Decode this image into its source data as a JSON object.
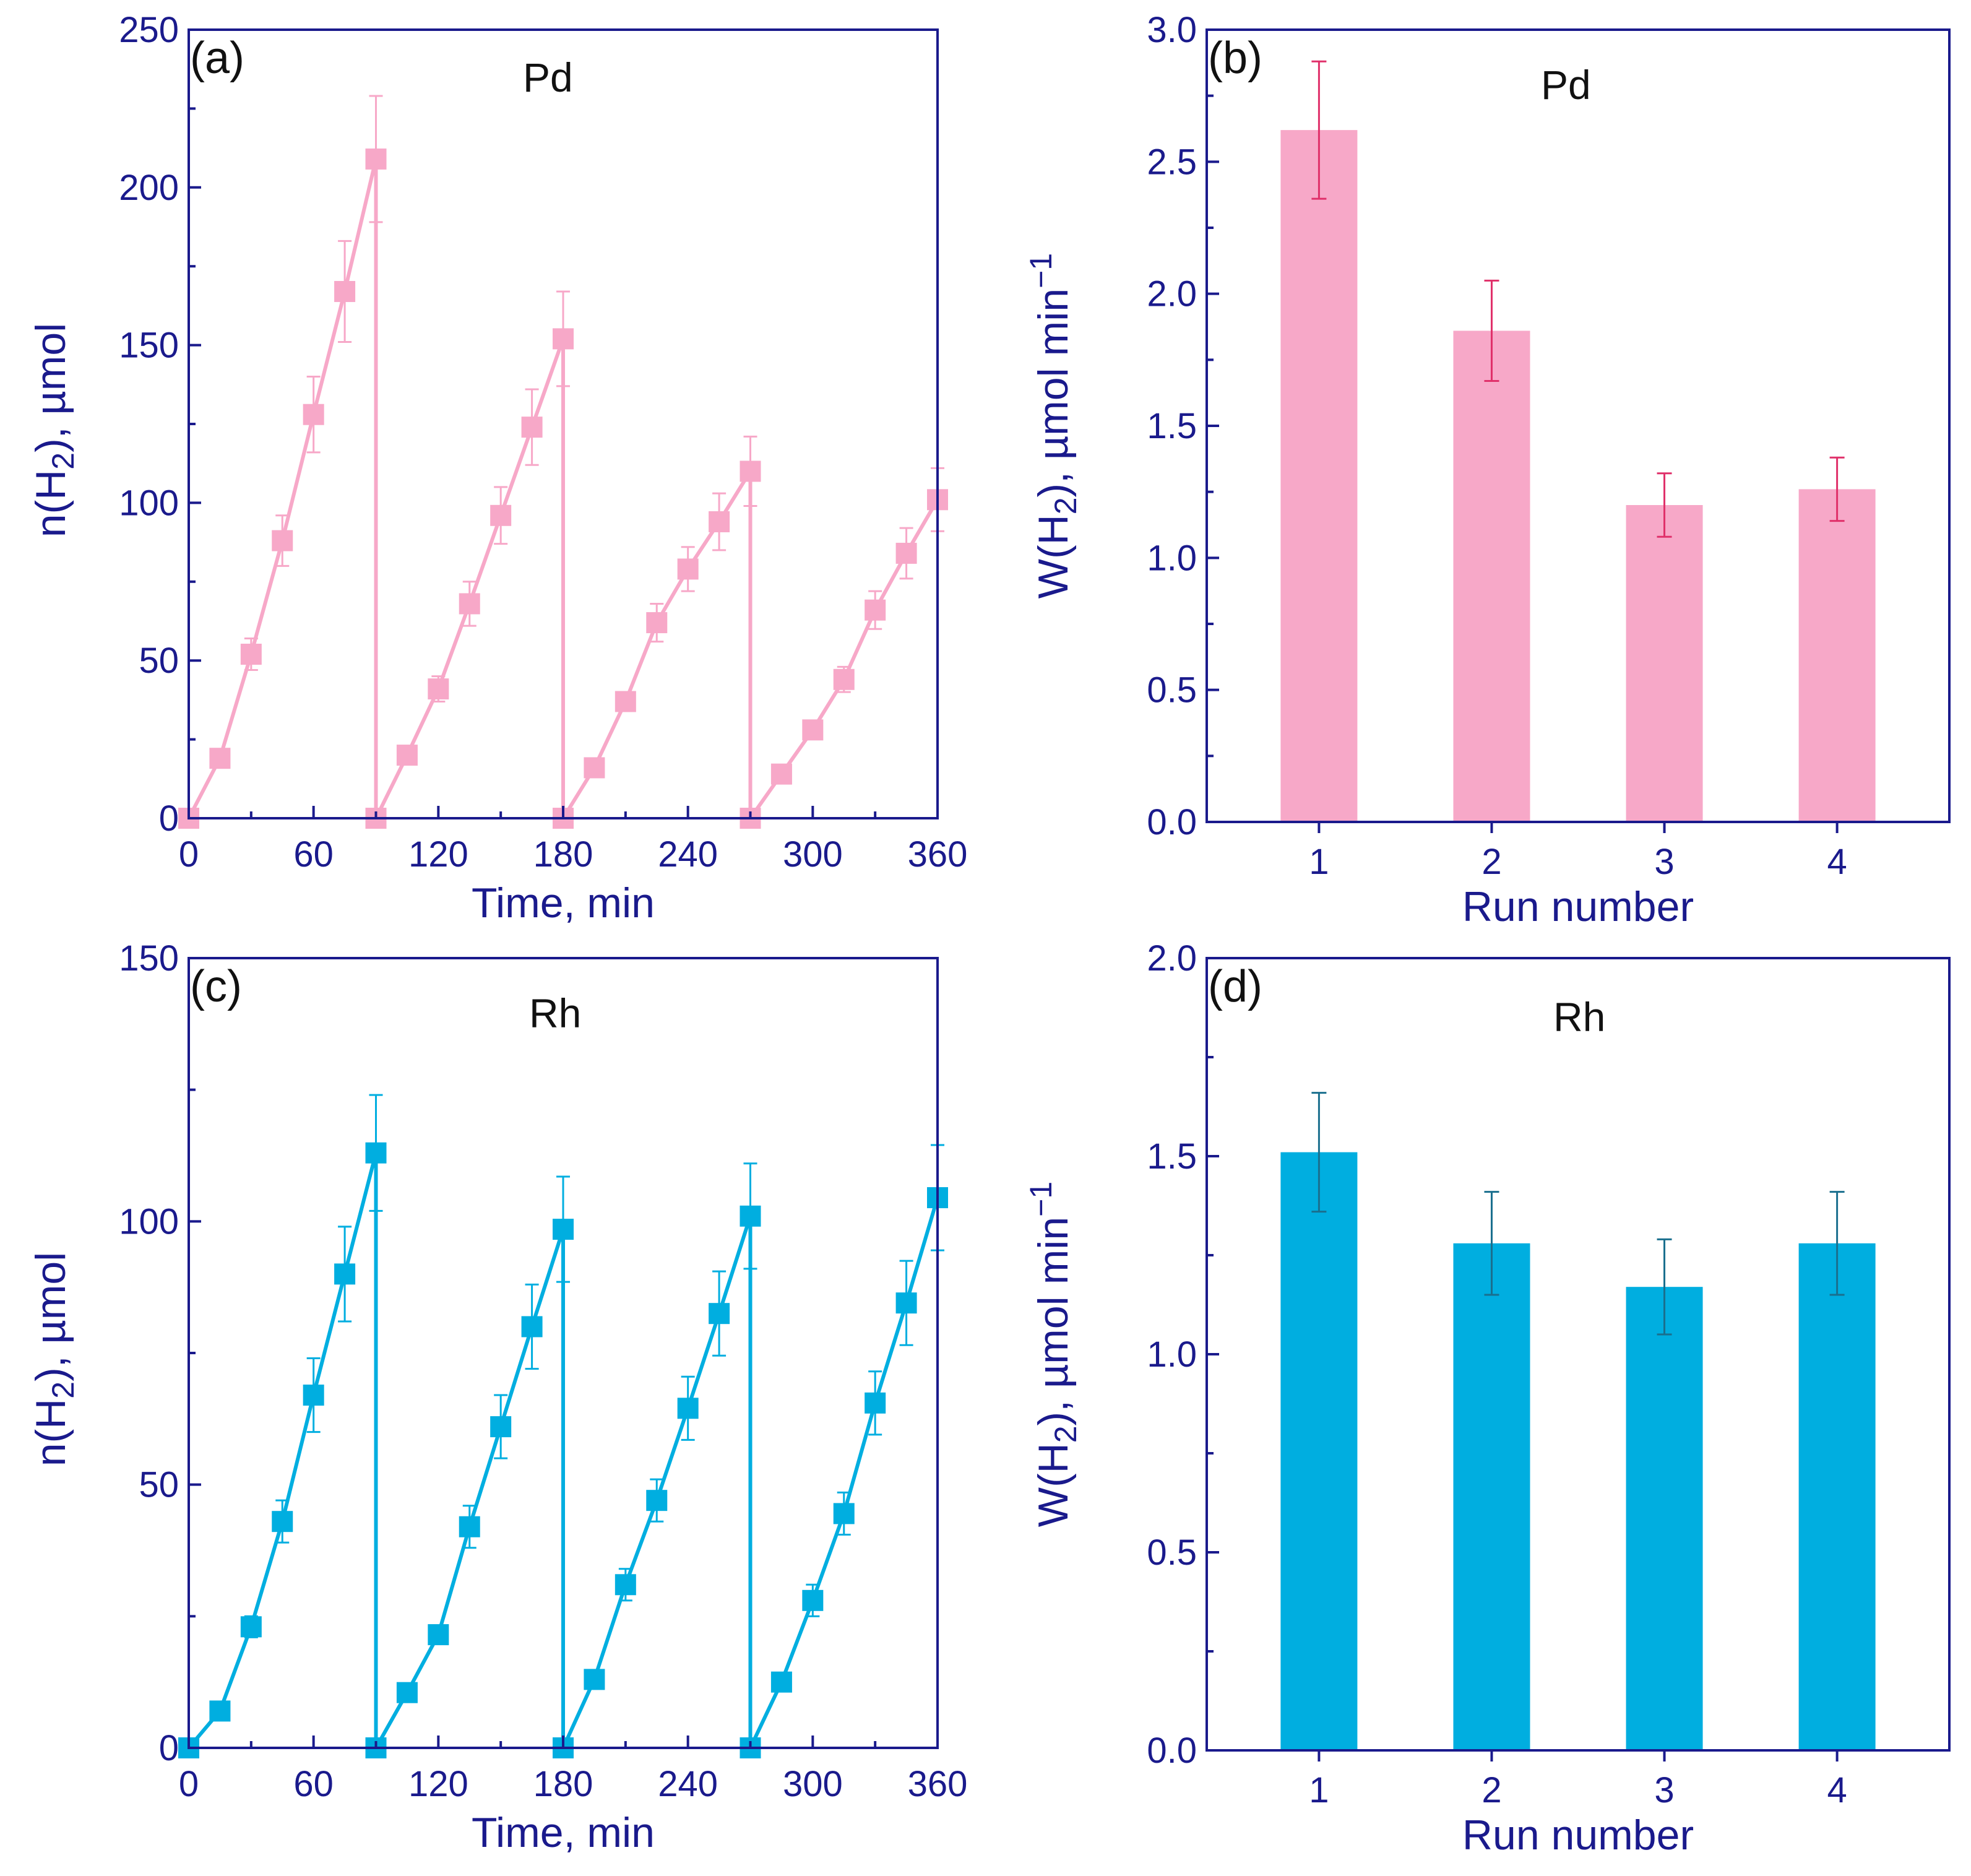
{
  "chart_data": [
    {
      "id": "a",
      "type": "line",
      "panel_label": "(a)",
      "metal": "Pd",
      "xlabel": "Time, min",
      "ylabel_main": "n(H",
      "ylabel_sub": "2",
      "ylabel_tail": "), µmol",
      "xlim": [
        0,
        360
      ],
      "ylim": [
        0,
        250
      ],
      "xticks": [
        0,
        60,
        120,
        180,
        240,
        300,
        360
      ],
      "yticks": [
        0,
        50,
        100,
        150,
        200,
        250
      ],
      "color": "#f7a8c8",
      "runs": [
        {
          "x": [
            0,
            15,
            30,
            45,
            60,
            75,
            90
          ],
          "y": [
            0,
            19,
            52,
            88,
            128,
            167,
            209
          ],
          "err": [
            0,
            2,
            5,
            8,
            12,
            16,
            20
          ]
        },
        {
          "x": [
            90,
            105,
            120,
            135,
            150,
            165,
            180
          ],
          "y": [
            0,
            20,
            41,
            68,
            96,
            124,
            152
          ],
          "err": [
            0,
            2,
            4,
            7,
            9,
            12,
            15
          ]
        },
        {
          "x": [
            180,
            195,
            210,
            225,
            240,
            255,
            270
          ],
          "y": [
            0,
            16,
            37,
            62,
            79,
            94,
            110
          ],
          "err": [
            0,
            2,
            3,
            6,
            7,
            9,
            11
          ]
        },
        {
          "x": [
            270,
            285,
            300,
            315,
            330,
            345,
            360
          ],
          "y": [
            0,
            14,
            28,
            44,
            66,
            84,
            101
          ],
          "err": [
            0,
            1,
            2,
            4,
            6,
            8,
            10
          ]
        }
      ]
    },
    {
      "id": "b",
      "type": "bar",
      "panel_label": "(b)",
      "metal": "Pd",
      "xlabel": "Run number",
      "ylabel_main": "W(H",
      "ylabel_sub": "2",
      "ylabel_tail": "), µmol min",
      "ylabel_sup": "−1",
      "categories": [
        "1",
        "2",
        "3",
        "4"
      ],
      "values": [
        2.62,
        1.86,
        1.2,
        1.26
      ],
      "errors": [
        0.26,
        0.19,
        0.12,
        0.12
      ],
      "xlim": [
        0.35,
        4.65
      ],
      "ylim": [
        0,
        3.0
      ],
      "yticks": [
        0.0,
        0.5,
        1.0,
        1.5,
        2.0,
        2.5,
        3.0
      ],
      "ytick_labels": [
        "0.0",
        "0.5",
        "1.0",
        "1.5",
        "2.0",
        "2.5",
        "3.0"
      ],
      "color": "#f7a8c8",
      "error_color": "#e0306a"
    },
    {
      "id": "c",
      "type": "line",
      "panel_label": "(c)",
      "metal": "Rh",
      "xlabel": "Time, min",
      "ylabel_main": "n(H",
      "ylabel_sub": "2",
      "ylabel_tail": "), µmol",
      "xlim": [
        0,
        360
      ],
      "ylim": [
        0,
        150
      ],
      "xticks": [
        0,
        60,
        120,
        180,
        240,
        300,
        360
      ],
      "yticks": [
        0,
        50,
        100,
        150
      ],
      "color": "#00aee0",
      "runs": [
        {
          "x": [
            0,
            15,
            30,
            45,
            60,
            75,
            90
          ],
          "y": [
            0,
            7,
            23,
            43,
            67,
            90,
            113
          ],
          "err": [
            0,
            1,
            2,
            4,
            7,
            9,
            11
          ]
        },
        {
          "x": [
            90,
            105,
            120,
            135,
            150,
            165,
            180
          ],
          "y": [
            0,
            10.5,
            21.5,
            42,
            61,
            80,
            98.5
          ],
          "err": [
            0,
            1,
            1,
            4,
            6,
            8,
            10
          ]
        },
        {
          "x": [
            180,
            195,
            210,
            225,
            240,
            255,
            270
          ],
          "y": [
            0,
            13,
            31,
            47,
            64.5,
            82.5,
            101
          ],
          "err": [
            0,
            1,
            3,
            4,
            6,
            8,
            10
          ]
        },
        {
          "x": [
            270,
            285,
            300,
            315,
            330,
            345,
            360
          ],
          "y": [
            0,
            12.5,
            28,
            44.5,
            65.5,
            84.5,
            104.5
          ],
          "err": [
            0,
            1,
            3,
            4,
            6,
            8,
            10
          ]
        }
      ]
    },
    {
      "id": "d",
      "type": "bar",
      "panel_label": "(d)",
      "metal": "Rh",
      "xlabel": "Run number",
      "ylabel_main": "W(H",
      "ylabel_sub": "2",
      "ylabel_tail": "), µmol min",
      "ylabel_sup": "−1",
      "categories": [
        "1",
        "2",
        "3",
        "4"
      ],
      "values": [
        1.51,
        1.28,
        1.17,
        1.28
      ],
      "errors": [
        0.15,
        0.13,
        0.12,
        0.13
      ],
      "xlim": [
        0.35,
        4.65
      ],
      "ylim": [
        0,
        2.0
      ],
      "yticks": [
        0.0,
        0.5,
        1.0,
        1.5,
        2.0
      ],
      "ytick_labels": [
        "0.0",
        "0.5",
        "1.0",
        "1.5",
        "2.0"
      ],
      "color": "#00aee0",
      "error_color": "#1a6f8e"
    }
  ]
}
